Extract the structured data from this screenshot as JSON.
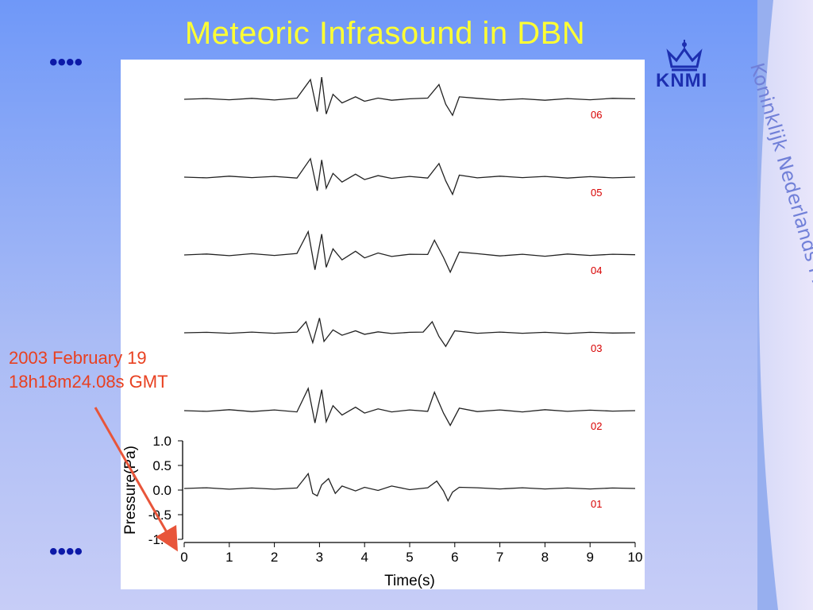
{
  "slide": {
    "title": "Meteoric Infrasound in DBN",
    "dots_top": "••••",
    "dots_bottom": "••••",
    "logo_text": "KNMI",
    "side_text": "Koninklijk Nederlands Meteorologisch Instituut",
    "annotation": {
      "line1": "2003 February 19",
      "line2": "18h18m24.08s GMT"
    },
    "colors": {
      "title": "#ffff33",
      "trace_label": "#d80000",
      "annotation": "#e84020",
      "arrow": "#e8553a",
      "dots": "#0d1aa8"
    }
  },
  "chart_data": {
    "type": "line",
    "xlabel": "Time(s)",
    "ylabel": "Pressure(Pa)",
    "xlim": [
      0,
      10
    ],
    "ylim": [
      -1.0,
      1.0
    ],
    "x_ticks": [
      "0",
      "1",
      "2",
      "3",
      "4",
      "5",
      "6",
      "7",
      "8",
      "9",
      "10"
    ],
    "y_ticks": [
      "1.0",
      "0.5",
      "0.0",
      "-0.5",
      "-1.0"
    ],
    "series": [
      {
        "name": "06",
        "x": [
          0,
          0.5,
          1,
          1.5,
          2,
          2.5,
          2.8,
          2.95,
          3.05,
          3.15,
          3.3,
          3.5,
          3.8,
          4.0,
          4.3,
          4.6,
          5.0,
          5.4,
          5.65,
          5.8,
          5.95,
          6.1,
          6.5,
          7.0,
          7.5,
          8.0,
          8.5,
          9.0,
          9.5,
          10
        ],
        "y": [
          0.0,
          0.03,
          -0.02,
          0.04,
          -0.03,
          0.05,
          0.8,
          -0.5,
          0.9,
          -0.6,
          0.2,
          -0.15,
          0.1,
          -0.08,
          0.05,
          -0.04,
          0.02,
          0.05,
          0.6,
          -0.2,
          -0.65,
          0.1,
          0.04,
          -0.03,
          0.02,
          -0.04,
          0.03,
          -0.02,
          0.04,
          0.02
        ]
      },
      {
        "name": "05",
        "x": [
          0,
          0.5,
          1,
          1.5,
          2,
          2.5,
          2.8,
          2.95,
          3.05,
          3.15,
          3.3,
          3.5,
          3.8,
          4.0,
          4.3,
          4.6,
          5.0,
          5.4,
          5.65,
          5.8,
          5.95,
          6.1,
          6.5,
          7.0,
          7.5,
          8.0,
          8.5,
          9.0,
          9.5,
          10
        ],
        "y": [
          0.0,
          -0.03,
          0.04,
          -0.02,
          0.03,
          -0.04,
          0.75,
          -0.55,
          0.7,
          -0.45,
          0.15,
          -0.2,
          0.12,
          -0.1,
          0.06,
          -0.05,
          0.03,
          -0.04,
          0.55,
          -0.15,
          -0.7,
          0.08,
          -0.03,
          0.04,
          -0.02,
          0.03,
          -0.04,
          0.02,
          -0.03,
          0.0
        ]
      },
      {
        "name": "04",
        "x": [
          0,
          0.5,
          1,
          1.5,
          2,
          2.5,
          2.75,
          2.9,
          3.05,
          3.15,
          3.3,
          3.5,
          3.8,
          4.0,
          4.3,
          4.6,
          5.0,
          5.4,
          5.55,
          5.75,
          5.9,
          6.1,
          6.5,
          7.0,
          7.5,
          8.0,
          8.5,
          9.0,
          9.5,
          10
        ],
        "y": [
          0.0,
          0.04,
          -0.03,
          0.05,
          -0.02,
          0.06,
          0.95,
          -0.6,
          0.85,
          -0.5,
          0.25,
          -0.2,
          0.15,
          -0.12,
          0.08,
          -0.06,
          0.03,
          0.02,
          0.6,
          -0.1,
          -0.7,
          0.12,
          0.05,
          -0.04,
          0.03,
          -0.05,
          0.04,
          -0.02,
          0.03,
          0.01
        ]
      },
      {
        "name": "03",
        "x": [
          0,
          0.5,
          1,
          1.5,
          2,
          2.5,
          2.7,
          2.85,
          3.0,
          3.1,
          3.3,
          3.5,
          3.8,
          4.0,
          4.3,
          4.6,
          5.0,
          5.3,
          5.5,
          5.65,
          5.8,
          6.0,
          6.5,
          7.0,
          7.5,
          8.0,
          8.5,
          9.0,
          9.5,
          10
        ],
        "y": [
          0.0,
          0.02,
          -0.02,
          0.03,
          -0.02,
          0.03,
          0.45,
          -0.4,
          0.6,
          -0.35,
          0.12,
          -0.1,
          0.08,
          -0.06,
          0.04,
          -0.03,
          0.02,
          0.03,
          0.45,
          -0.15,
          -0.55,
          0.08,
          -0.02,
          0.03,
          -0.02,
          0.02,
          -0.03,
          0.02,
          -0.01,
          0.0
        ]
      },
      {
        "name": "02",
        "x": [
          0,
          0.5,
          1,
          1.5,
          2,
          2.5,
          2.75,
          2.9,
          3.05,
          3.15,
          3.3,
          3.5,
          3.8,
          4.0,
          4.3,
          4.6,
          5.0,
          5.4,
          5.55,
          5.75,
          5.9,
          6.1,
          6.5,
          7.0,
          7.5,
          8.0,
          8.5,
          9.0,
          9.5,
          10
        ],
        "y": [
          0.0,
          -0.03,
          0.04,
          -0.04,
          0.03,
          -0.05,
          0.9,
          -0.5,
          0.85,
          -0.45,
          0.2,
          -0.18,
          0.14,
          -0.1,
          0.07,
          -0.05,
          0.03,
          -0.03,
          0.75,
          -0.1,
          -0.6,
          0.1,
          -0.04,
          0.03,
          -0.05,
          0.04,
          -0.03,
          0.02,
          -0.02,
          0.0
        ]
      },
      {
        "name": "01",
        "x": [
          0,
          0.5,
          1,
          1.5,
          2,
          2.5,
          2.75,
          2.85,
          2.95,
          3.05,
          3.2,
          3.35,
          3.5,
          3.8,
          4.0,
          4.3,
          4.6,
          5.0,
          5.4,
          5.6,
          5.75,
          5.85,
          5.95,
          6.1,
          6.5,
          7.0,
          7.5,
          8.0,
          8.5,
          9.0,
          9.5,
          10
        ],
        "y": [
          0.0,
          0.03,
          -0.03,
          0.02,
          -0.03,
          0.02,
          0.6,
          -0.2,
          -0.3,
          0.15,
          0.4,
          -0.2,
          0.1,
          -0.1,
          0.05,
          -0.08,
          0.1,
          -0.05,
          0.03,
          0.3,
          -0.1,
          -0.5,
          -0.15,
          0.05,
          0.03,
          -0.02,
          0.03,
          -0.02,
          0.02,
          -0.02,
          0.02,
          0.0
        ]
      }
    ]
  }
}
